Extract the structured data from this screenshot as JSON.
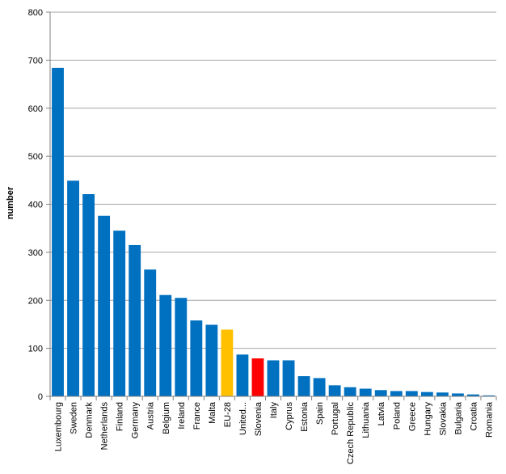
{
  "chart_data": {
    "type": "bar",
    "title": "",
    "xlabel": "",
    "ylabel": "number",
    "ylim": [
      0,
      800
    ],
    "yticks": [
      0,
      100,
      200,
      300,
      400,
      500,
      600,
      700,
      800
    ],
    "grid": true,
    "legend": "none",
    "categories": [
      "Luxembourg",
      "Sweden",
      "Denmark",
      "Netherlands",
      "Finland",
      "Germany",
      "Austria",
      "Belgium",
      "Ireland",
      "France",
      "Malta",
      "EU-28",
      "United...",
      "Slovenia",
      "Italy",
      "Cyprus",
      "Estonia",
      "Spain",
      "Portugal",
      "Czech Republic",
      "Lithuania",
      "Latvia",
      "Poland",
      "Greece",
      "Hungary",
      "Slovakia",
      "Bulgaria",
      "Croatia",
      "Romania"
    ],
    "values": [
      684,
      449,
      421,
      376,
      345,
      315,
      264,
      211,
      205,
      158,
      149,
      139,
      87,
      79,
      75,
      75,
      42,
      38,
      23,
      19,
      16,
      13,
      11,
      11,
      9,
      8,
      6,
      4,
      2
    ],
    "colors": {
      "default": "#0070C0",
      "EU-28": "#FFC000",
      "Slovenia": "#FF0000",
      "grid": "#A6A6A6",
      "axis": "#808080"
    }
  }
}
